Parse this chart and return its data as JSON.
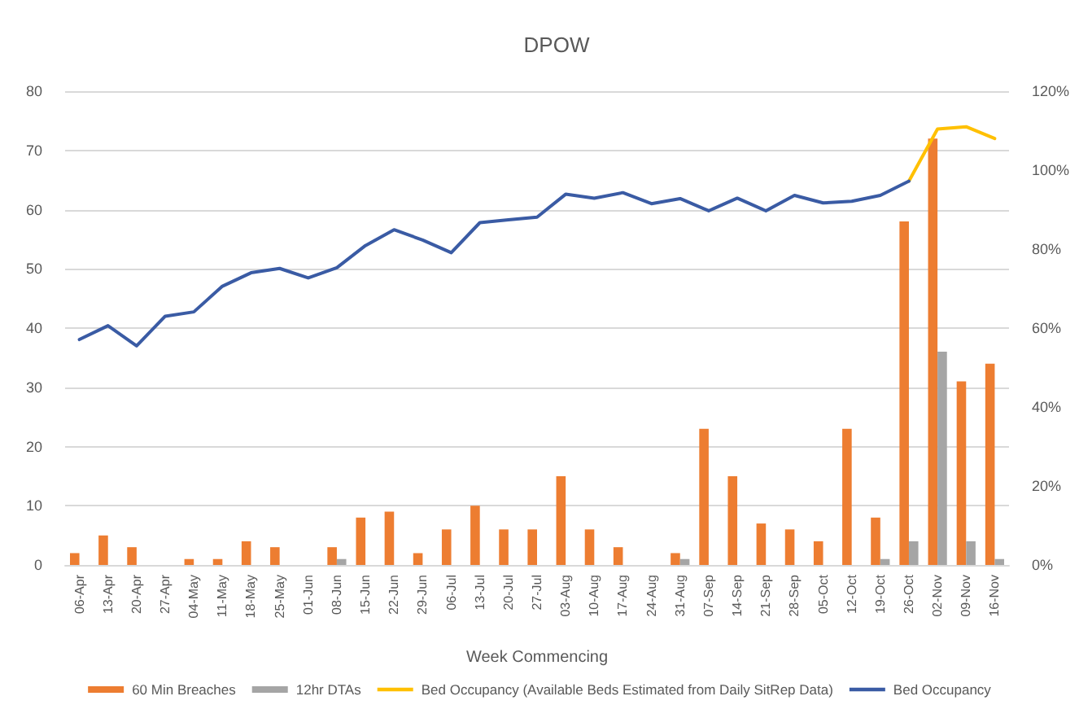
{
  "chart_data": {
    "type": "bar",
    "title": "DPOW",
    "xlabel": "Week Commencing",
    "categories": [
      "06-Apr",
      "13-Apr",
      "20-Apr",
      "27-Apr",
      "04-May",
      "11-May",
      "18-May",
      "25-May",
      "01-Jun",
      "08-Jun",
      "15-Jun",
      "22-Jun",
      "29-Jun",
      "06-Jul",
      "13-Jul",
      "20-Jul",
      "27-Jul",
      "03-Aug",
      "10-Aug",
      "17-Aug",
      "24-Aug",
      "31-Aug",
      "07-Sep",
      "14-Sep",
      "21-Sep",
      "28-Sep",
      "05-Oct",
      "12-Oct",
      "19-Oct",
      "26-Oct",
      "02-Nov",
      "09-Nov",
      "16-Nov"
    ],
    "series": [
      {
        "name": "60 Min Breaches",
        "color": "#ed7d31",
        "values": [
          2,
          5,
          3,
          0,
          1,
          1,
          4,
          3,
          0,
          3,
          8,
          9,
          2,
          6,
          10,
          6,
          6,
          15,
          6,
          3,
          0,
          2,
          23,
          15,
          7,
          6,
          4,
          23,
          8,
          58,
          72,
          31,
          34
        ]
      },
      {
        "name": "12hr DTAs",
        "color": "#a5a5a5",
        "values": [
          0,
          0,
          0,
          0,
          0,
          0,
          0,
          0,
          0,
          1,
          0,
          0,
          0,
          0,
          0,
          0,
          0,
          0,
          0,
          0,
          0,
          1,
          0,
          0,
          0,
          0,
          0,
          0,
          1,
          4,
          36,
          4,
          1
        ]
      },
      {
        "name": "Bed Occupancy (Available Beds Estimated from Daily SitRep Data)",
        "type": "line",
        "axis": "y2",
        "color": "#ffc000",
        "values": [
          null,
          null,
          null,
          null,
          null,
          null,
          null,
          null,
          null,
          null,
          null,
          null,
          null,
          null,
          null,
          null,
          null,
          null,
          null,
          null,
          null,
          null,
          null,
          null,
          null,
          null,
          null,
          null,
          null,
          97.2,
          110.4,
          111,
          108
        ]
      },
      {
        "name": "Bed Occupancy",
        "type": "line",
        "axis": "y2",
        "color": "#3a5ba4",
        "values": [
          57.1,
          60.6,
          55.5,
          63,
          64.1,
          70.6,
          74,
          75.1,
          72.7,
          75.3,
          80.9,
          84.9,
          82.3,
          79.1,
          86.7,
          87.4,
          88.1,
          93.9,
          92.9,
          94.3,
          91.5,
          92.8,
          89.7,
          92.9,
          89.7,
          93.6,
          91.7,
          92.1,
          93.6,
          97.2,
          null,
          null,
          null
        ]
      }
    ],
    "ylim": [
      0,
      80
    ],
    "yticks": [
      0,
      10,
      20,
      30,
      40,
      50,
      60,
      70,
      80
    ],
    "y2lim": [
      0,
      120
    ],
    "y2ticks": [
      {
        "value": 0,
        "label": "0%"
      },
      {
        "value": 20,
        "label": "20%"
      },
      {
        "value": 40,
        "label": "40%"
      },
      {
        "value": 60,
        "label": "60%"
      },
      {
        "value": 80,
        "label": "80%"
      },
      {
        "value": 100,
        "label": "100%"
      },
      {
        "value": 120,
        "label": "120%"
      }
    ],
    "grid": "y",
    "legend": "bottom"
  }
}
